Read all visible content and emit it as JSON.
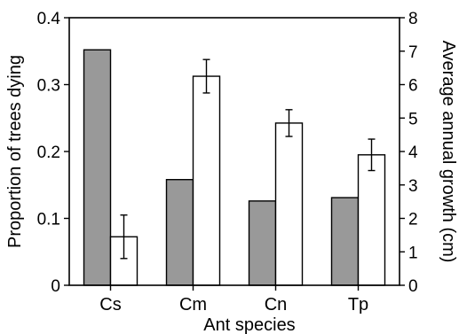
{
  "chart_data": {
    "type": "bar",
    "categories": [
      "Cs",
      "Cm",
      "Cn",
      "Tp"
    ],
    "xlabel": "Ant species",
    "ylabel_left": "Proportion of trees dying",
    "ylabel_right": "Average annual growth (cm)",
    "ylim_left": [
      0,
      0.4
    ],
    "ylim_right": [
      0,
      8
    ],
    "yticks_left": [
      "0",
      "0.1",
      "0.2",
      "0.3",
      "0.4"
    ],
    "yticks_right": [
      "0",
      "1",
      "2",
      "3",
      "4",
      "5",
      "6",
      "7",
      "8"
    ],
    "grid": false,
    "series": [
      {
        "axis": "left",
        "color": "#999999",
        "values": [
          0.352,
          0.158,
          0.126,
          0.131
        ]
      },
      {
        "axis": "right",
        "color": "#ffffff",
        "values": [
          1.45,
          6.25,
          4.85,
          3.9
        ],
        "error": [
          0.65,
          0.5,
          0.4,
          0.47
        ]
      }
    ]
  }
}
